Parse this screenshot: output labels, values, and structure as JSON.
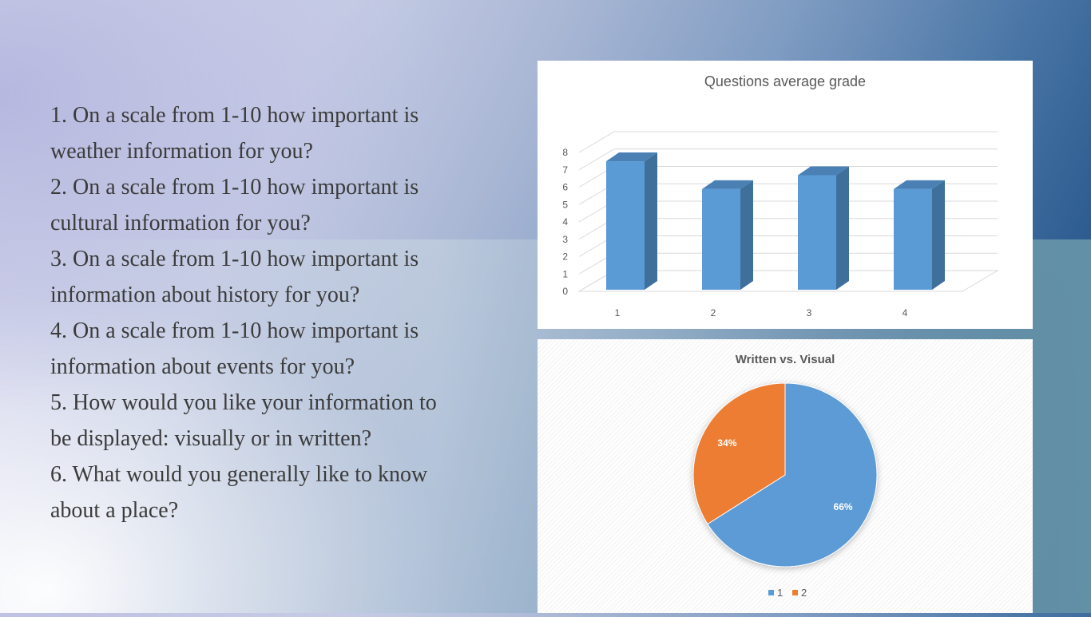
{
  "questions": [
    "1. On a scale from 1-10 how important is\nweather information for you?",
    "2. On a scale from 1-10 how important is\ncultural information for you?",
    "3. On a scale from 1-10 how important is\ninformation about history for you?",
    "4. On a scale from 1-10 how important is\ninformation about events for you?",
    "5. How would you like your information to\nbe displayed: visually or in written?",
    "6. What would you generally like to know\nabout a place?"
  ],
  "chart_data": [
    {
      "type": "bar",
      "title": "Questions average grade",
      "categories": [
        "1",
        "2",
        "3",
        "4"
      ],
      "values": [
        7.4,
        5.8,
        6.6,
        5.8
      ],
      "ylim": [
        0,
        8
      ],
      "yticks": [
        "0",
        "1",
        "2",
        "3",
        "4",
        "5",
        "6",
        "7",
        "8"
      ],
      "grid": true,
      "style": "3d-column",
      "colors": {
        "front": "#5b9bd5",
        "side": "#3f6f9b",
        "top": "#4a80b4"
      }
    },
    {
      "type": "pie",
      "title": "Written vs. Visual",
      "labels": [
        "1",
        "2"
      ],
      "values": [
        66,
        34
      ],
      "data_labels": [
        "66%",
        "34%"
      ],
      "colors": [
        "#5b9bd5",
        "#ed7d31"
      ],
      "legend": "bottom"
    }
  ]
}
